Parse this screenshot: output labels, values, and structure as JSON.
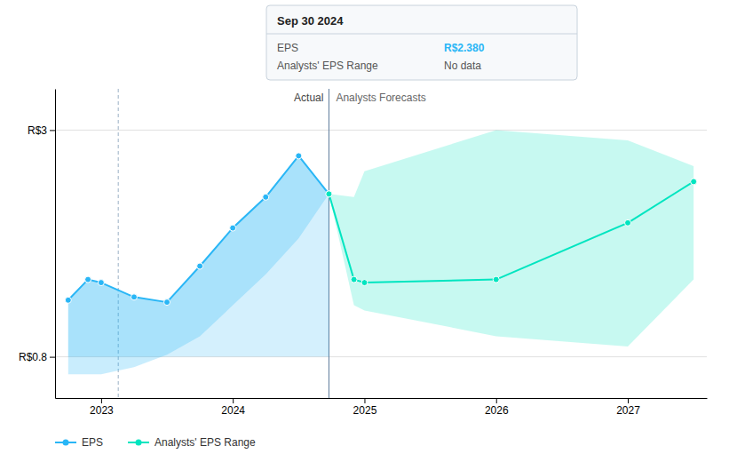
{
  "chart_data": {
    "type": "line",
    "series": [
      {
        "name": "EPS",
        "color": "#29b6f6",
        "x": [
          2022.75,
          2022.9,
          2023.0,
          2023.25,
          2023.5,
          2023.75,
          2024.0,
          2024.25,
          2024.5,
          2024.73
        ],
        "values": [
          1.35,
          1.55,
          1.52,
          1.38,
          1.33,
          1.68,
          2.05,
          2.35,
          2.75,
          2.38
        ],
        "fill_lower": [
          0.8,
          0.8,
          0.8,
          0.8,
          0.8,
          0.8,
          0.8,
          0.8,
          0.8,
          0.8
        ],
        "fill_lower2": [
          0.63,
          0.63,
          0.63,
          0.7,
          0.82,
          1.0,
          1.3,
          1.6,
          1.95,
          2.38
        ]
      },
      {
        "name": "Analysts' EPS Range",
        "color": "#00e5c0",
        "x": [
          2024.73,
          2024.92,
          2025.0,
          2026.0,
          2027.0,
          2027.5
        ],
        "values": [
          2.38,
          1.55,
          1.52,
          1.55,
          2.1,
          2.5
        ],
        "upper": [
          2.38,
          2.35,
          2.6,
          3.0,
          2.9,
          2.65
        ],
        "lower": [
          2.38,
          1.3,
          1.25,
          1.0,
          0.9,
          1.55
        ]
      }
    ],
    "xlim": [
      2022.65,
      2027.6
    ],
    "xticks": [
      2023,
      2024,
      2025,
      2026,
      2027
    ],
    "ylim": [
      0.4,
      3.4
    ],
    "yticks": [
      {
        "value": 0.8,
        "label": "R$0.8"
      },
      {
        "value": 3.0,
        "label": "R$3"
      }
    ],
    "grid": true,
    "legend": "bottom",
    "vlines": [
      2024.73,
      2023.13
    ],
    "annotations": [
      "Actual",
      "Analysts Forecasts"
    ],
    "tooltip": {
      "title": "Sep 30 2024",
      "rows": [
        {
          "label": "EPS",
          "value": "R$2.380"
        },
        {
          "label": "Analysts' EPS Range",
          "value": "No data"
        }
      ]
    }
  }
}
